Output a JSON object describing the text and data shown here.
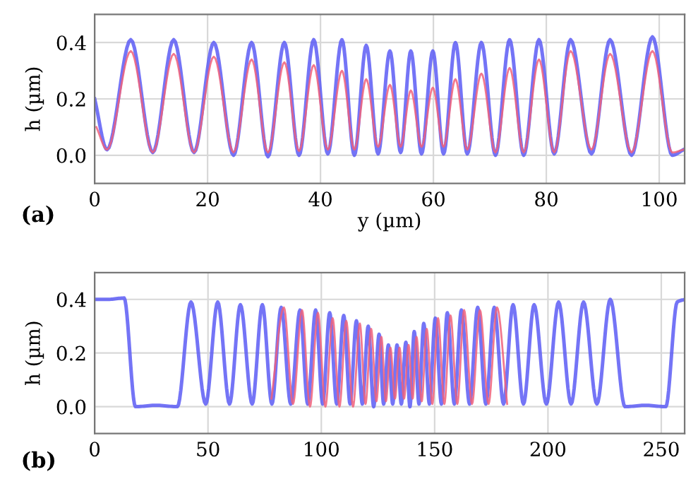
{
  "chart_data": [
    {
      "type": "line",
      "xlabel": "y (µm)",
      "ylabel": "h (µm)",
      "annotations": [
        "(a)"
      ],
      "xlim": [
        0,
        104.5
      ],
      "ylim": [
        -0.1,
        0.5
      ],
      "xticks": [
        0,
        20,
        40,
        60,
        80,
        100
      ],
      "yticks": [
        {
          "value": 0,
          "label": "0.0"
        },
        {
          "value": 0.2,
          "label": "0.2"
        },
        {
          "value": 0.4,
          "label": "0.4"
        }
      ],
      "grid": true,
      "series": [
        {
          "color": "#5c5cf5",
          "x": [
            0,
            2.2,
            6.4,
            10.3,
            14.0,
            17.6,
            21.1,
            24.6,
            27.8,
            30.7,
            33.6,
            36.2,
            38.8,
            41.3,
            43.8,
            46.0,
            48.1,
            50.2,
            52.3,
            54.2,
            56.0,
            57.9,
            59.9,
            61.8,
            63.9,
            66.0,
            68.5,
            71.0,
            73.5,
            76.0,
            78.7,
            81.4,
            84.3,
            88.0,
            91.3,
            95.1,
            98.8,
            102.3,
            104.3
          ],
          "values": [
            0.2,
            0.02,
            0.41,
            0.01,
            0.41,
            0.01,
            0.4,
            0.0,
            0.4,
            -0.005,
            0.4,
            0.0,
            0.41,
            0.005,
            0.41,
            0.0,
            0.39,
            0.005,
            0.37,
            0.01,
            0.37,
            0.005,
            0.37,
            0.005,
            0.4,
            0.005,
            0.4,
            0.0,
            0.41,
            0.0,
            0.41,
            0.005,
            0.41,
            0.005,
            0.41,
            0.0,
            0.42,
            0.0,
            0.02
          ]
        },
        {
          "color": "#f0607a",
          "x": [
            0.3,
            2.2,
            6.4,
            10.3,
            14.0,
            17.6,
            21.1,
            24.6,
            27.8,
            30.7,
            33.6,
            36.2,
            38.8,
            41.3,
            43.8,
            46.0,
            48.1,
            50.2,
            52.3,
            54.2,
            56.0,
            57.9,
            59.9,
            61.8,
            63.9,
            66.0,
            68.5,
            71.0,
            73.5,
            76.0,
            78.7,
            81.4,
            84.3,
            88.0,
            91.3,
            95.1,
            98.8,
            102.3,
            104.3
          ],
          "values": [
            0.1,
            0.02,
            0.37,
            0.01,
            0.36,
            0.01,
            0.35,
            0.01,
            0.34,
            0.01,
            0.33,
            0.015,
            0.32,
            0.02,
            0.3,
            0.02,
            0.27,
            0.03,
            0.25,
            0.03,
            0.23,
            0.03,
            0.24,
            0.03,
            0.27,
            0.02,
            0.29,
            0.01,
            0.31,
            0.01,
            0.34,
            0.01,
            0.37,
            0.02,
            0.36,
            0.01,
            0.37,
            0.01,
            0.02
          ]
        }
      ]
    },
    {
      "type": "line",
      "ylabel": "h (µm)",
      "annotations": [
        "(b)"
      ],
      "xlim": [
        0,
        260.3
      ],
      "ylim": [
        -0.1,
        0.5
      ],
      "xticks": [
        0,
        50,
        100,
        150,
        200,
        250
      ],
      "yticks": [
        {
          "value": 0,
          "label": "0.0"
        },
        {
          "value": 0.2,
          "label": "0.2"
        },
        {
          "value": 0.4,
          "label": "0.4"
        }
      ],
      "grid": true,
      "series": [
        {
          "color": "#5c5cf5",
          "x": [
            0,
            6,
            13,
            18,
            27,
            36.5,
            42.5,
            49,
            54.3,
            59.5,
            64.3,
            69.5,
            74.0,
            78.2,
            82.3,
            86.5,
            90.6,
            94.0,
            97.5,
            100.6,
            103.7,
            106.8,
            109.9,
            112.7,
            115.5,
            118.1,
            120.7,
            123.1,
            125.5,
            127.5,
            129.6,
            131.5,
            133.4,
            135.3,
            137.3,
            139.1,
            141.0,
            143.1,
            145.2,
            147.7,
            150.3,
            153.0,
            155.6,
            158.7,
            161.8,
            165.4,
            169.0,
            172.6,
            176.3,
            180.4,
            184.6,
            189.2,
            193.9,
            199.3,
            204.7,
            210.2,
            215.7,
            221.6,
            227.5,
            234,
            243,
            252,
            257,
            260.3
          ],
          "values": [
            0.4,
            0.4,
            0.405,
            0.0,
            0.005,
            0.0,
            0.39,
            0.01,
            0.39,
            0.01,
            0.38,
            0.01,
            0.38,
            0.01,
            0.37,
            0.01,
            0.36,
            0.01,
            0.36,
            0.01,
            0.35,
            0.01,
            0.34,
            0.01,
            0.32,
            0.01,
            0.3,
            0.0,
            0.27,
            0.01,
            0.23,
            0.01,
            0.23,
            0.01,
            0.24,
            0.0,
            0.28,
            0.01,
            0.31,
            0.01,
            0.33,
            0.01,
            0.35,
            0.01,
            0.36,
            0.01,
            0.37,
            0.01,
            0.37,
            0.01,
            0.38,
            0.01,
            0.38,
            0.01,
            0.39,
            0.01,
            0.39,
            0.01,
            0.4,
            0.0,
            0.005,
            0.0,
            0.39,
            0.4
          ]
        },
        {
          "color": "#f0607a",
          "x": [
            78,
            83.5,
            87.5,
            91.5,
            95.0,
            98.5,
            101.8,
            105.0,
            108.0,
            111.0,
            114.0,
            117.0,
            119.5,
            122.0,
            124.3,
            126.5,
            128.5,
            130.5,
            132.5,
            134.5,
            136.5,
            138.5,
            140.3,
            142.0,
            144.3,
            146.5,
            149.0,
            151.5,
            154.3,
            157.0,
            160.0,
            163.0,
            166.5,
            170.0,
            173.8,
            177.5,
            182
          ],
          "values": [
            0.03,
            0.37,
            0.01,
            0.36,
            0.0,
            0.35,
            0.0,
            0.33,
            0.0,
            0.32,
            0.0,
            0.31,
            0.01,
            0.29,
            0.02,
            0.26,
            0.02,
            0.22,
            0.03,
            0.22,
            0.03,
            0.23,
            0.03,
            0.26,
            0.02,
            0.29,
            0.01,
            0.33,
            0.01,
            0.34,
            0.01,
            0.36,
            0.01,
            0.36,
            0.01,
            0.37,
            0.01
          ]
        }
      ]
    }
  ]
}
